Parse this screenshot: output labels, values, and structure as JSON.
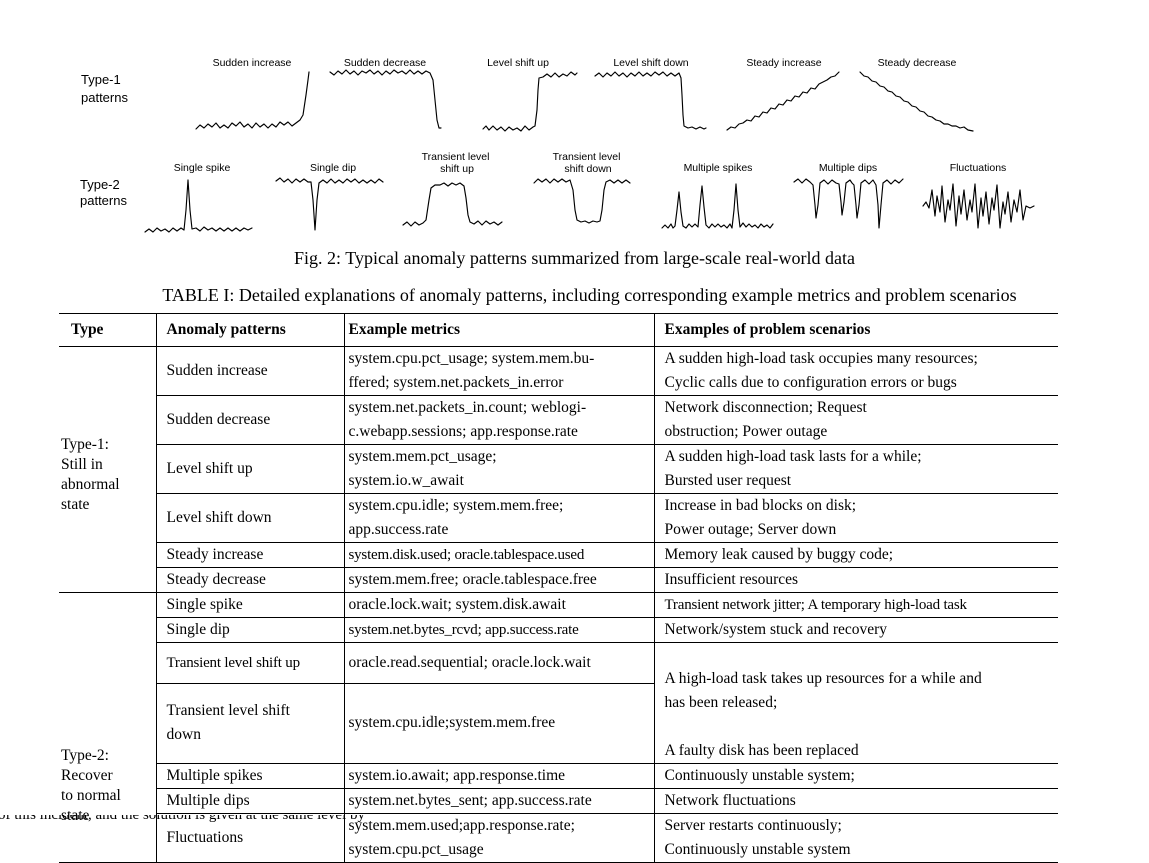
{
  "figure": {
    "row1_label": "Type-1\npatterns",
    "row2_label": "Type-2\npatterns",
    "type1": [
      {
        "name": "Sudden increase",
        "icon": "sudden-increase"
      },
      {
        "name": "Sudden decrease",
        "icon": "sudden-decrease"
      },
      {
        "name": "Level shift up",
        "icon": "level-shift-up"
      },
      {
        "name": "Level shift down",
        "icon": "level-shift-down"
      },
      {
        "name": "Steady increase",
        "icon": "steady-increase"
      },
      {
        "name": "Steady decrease",
        "icon": "steady-decrease"
      }
    ],
    "type2": [
      {
        "name": "Single spike",
        "icon": "single-spike"
      },
      {
        "name": "Single dip",
        "icon": "single-dip"
      },
      {
        "name": "Transient level\nshift up",
        "icon": "transient-level-shift-up"
      },
      {
        "name": "Transient level\nshift down",
        "icon": "transient-level-shift-down"
      },
      {
        "name": "Multiple spikes",
        "icon": "multiple-spikes"
      },
      {
        "name": "Multiple dips",
        "icon": "multiple-dips"
      },
      {
        "name": "Fluctuations",
        "icon": "fluctuations"
      }
    ],
    "caption": "Fig. 2: Typical anomaly patterns summarized from large-scale real-world data"
  },
  "table": {
    "caption": "TABLE I: Detailed explanations of anomaly patterns, including corresponding example metrics and problem scenarios",
    "headers": [
      "Type",
      "Anomaly patterns",
      "Example metrics",
      "Examples of problem scenarios"
    ],
    "type1_label": "Type-1:\nStill in\nabnormal\nstate",
    "type2_label": "Type-2:\nRecover\nto normal\nstate",
    "type1_rows": [
      {
        "pattern": "Sudden increase",
        "metrics": "system.cpu.pct_usage; system.mem.bu-\nffered; system.net.packets_in.error",
        "scenarios": "A sudden high-load task occupies many resources;\nCyclic calls due to configuration errors or bugs"
      },
      {
        "pattern": "Sudden decrease",
        "metrics": "system.net.packets_in.count; weblogi-\nc.webapp.sessions; app.response.rate",
        "scenarios": "Network disconnection; Request\nobstruction; Power outage"
      },
      {
        "pattern": "Level shift up",
        "metrics": "system.mem.pct_usage;\nsystem.io.w_await",
        "scenarios": "A sudden high-load task lasts for a while;\nBursted user request"
      },
      {
        "pattern": "Level shift down",
        "metrics": "system.cpu.idle; system.mem.free;\napp.success.rate",
        "scenarios": "Increase in bad blocks on disk;\nPower outage; Server down"
      },
      {
        "pattern": "Steady increase",
        "metrics": "system.disk.used; oracle.tablespace.used",
        "scenarios": "Memory leak caused by buggy code;"
      },
      {
        "pattern": "Steady decrease",
        "metrics": "system.mem.free; oracle.tablespace.free",
        "scenarios": "Insufficient resources"
      }
    ],
    "type2_rows": [
      {
        "pattern": "Single spike",
        "metrics": "oracle.lock.wait; system.disk.await",
        "scenarios": "Transient network jitter; A temporary high-load task"
      },
      {
        "pattern": "Single dip",
        "metrics": "system.net.bytes_rcvd; app.success.rate",
        "scenarios": "Network/system stuck and recovery"
      },
      {
        "pattern": "Transient level shift up",
        "metrics": "oracle.read.sequential; oracle.lock.wait",
        "scenarios": "A high-load task takes up resources for a while and\nhas been released;"
      },
      {
        "pattern": "Transient level shift\ndown",
        "metrics": "system.cpu.idle;system.mem.free",
        "scenarios": "A faulty disk has been replaced"
      },
      {
        "pattern": "Multiple spikes",
        "metrics": "system.io.await; app.response.time",
        "scenarios": "Continuously unstable system;"
      },
      {
        "pattern": "Multiple dips",
        "metrics": "system.net.bytes_sent; app.success.rate",
        "scenarios": "Network fluctuations"
      },
      {
        "pattern": "Fluctuations",
        "metrics": "system.mem.used;app.response.rate;\nsystem.cpu.pct_usage",
        "scenarios": "Server restarts continuously;\nContinuously unstable system"
      }
    ]
  },
  "footer_fragment": "of this incident, and the solution is given at the same level by"
}
